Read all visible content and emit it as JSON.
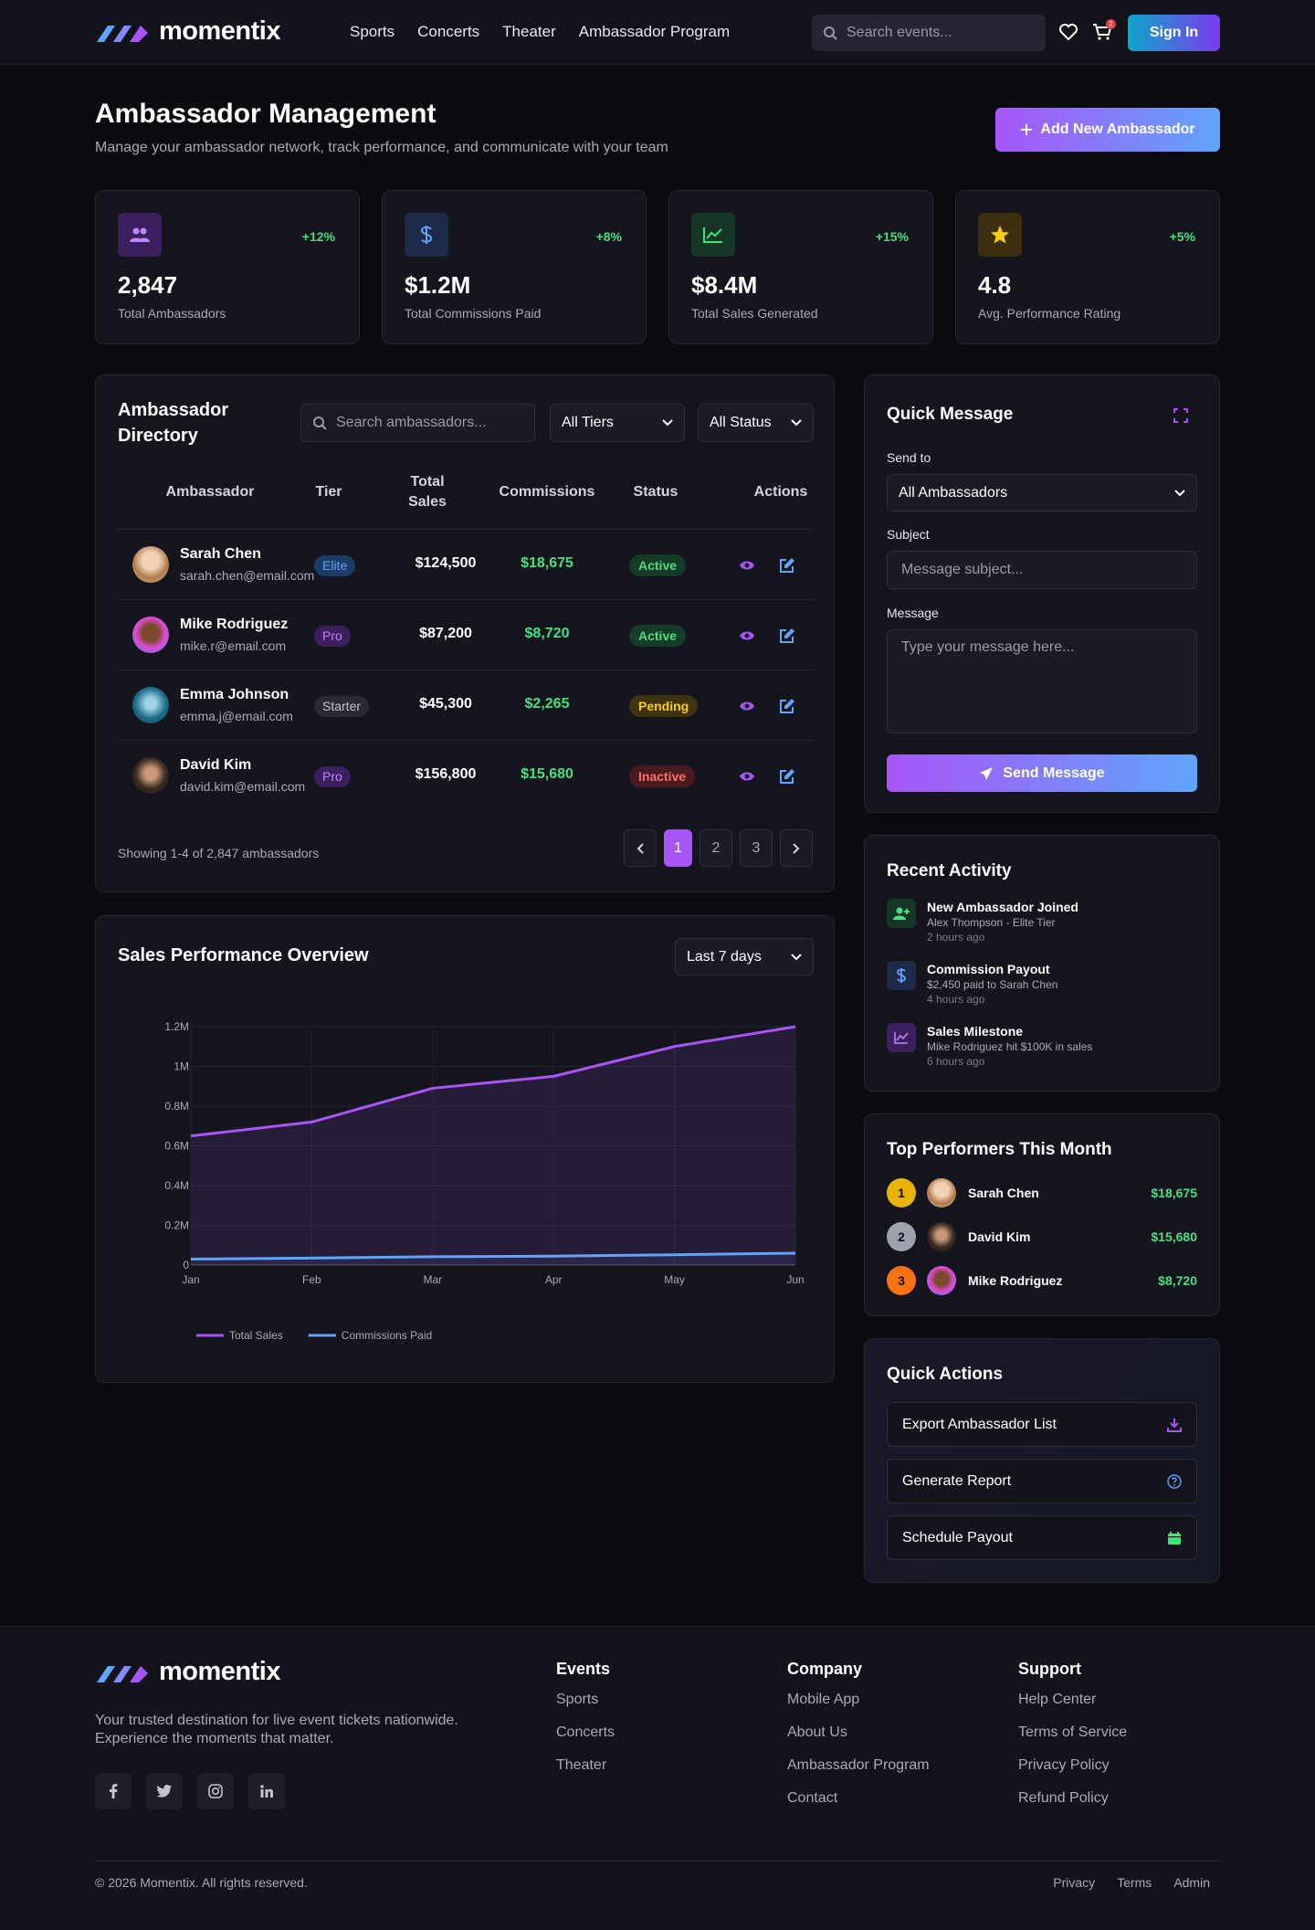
{
  "brand": {
    "name": "momentix"
  },
  "nav": {
    "links": [
      "Sports",
      "Concerts",
      "Theater",
      "Ambassador Program"
    ],
    "search_placeholder": "Search events...",
    "cart_count": "2",
    "signin": "Sign In"
  },
  "header": {
    "title": "Ambassador Management",
    "subtitle": "Manage your ambassador network, track performance, and communicate with your team",
    "add_button": "Add New Ambassador"
  },
  "stats": [
    {
      "value": "2,847",
      "label": "Total Ambassadors",
      "change": "+12%",
      "icon": "users-icon",
      "color": "#a855f7"
    },
    {
      "value": "$1.2M",
      "label": "Total Commissions Paid",
      "change": "+8%",
      "icon": "dollar-icon",
      "color": "#60a5fa"
    },
    {
      "value": "$8.4M",
      "label": "Total Sales Generated",
      "change": "+15%",
      "icon": "trend-icon",
      "color": "#4ade80"
    },
    {
      "value": "4.8",
      "label": "Avg. Performance Rating",
      "change": "+5%",
      "icon": "star-icon",
      "color": "#facc15"
    }
  ],
  "directory": {
    "title": "Ambassador Directory",
    "search_placeholder": "Search ambassadors...",
    "tier_filter": "All Tiers",
    "status_filter": "All Status",
    "columns": {
      "ambassador": "Ambassador",
      "tier": "Tier",
      "sales": "Total Sales",
      "commissions": "Commissions",
      "status": "Status",
      "actions": "Actions"
    },
    "rows": [
      {
        "name": "Sarah Chen",
        "email": "sarah.chen@email.com",
        "tier": "Elite",
        "sales": "$124,500",
        "commissions": "$18,675",
        "status": "Active"
      },
      {
        "name": "Mike Rodriguez",
        "email": "mike.r@email.com",
        "tier": "Pro",
        "sales": "$87,200",
        "commissions": "$8,720",
        "status": "Active"
      },
      {
        "name": "Emma Johnson",
        "email": "emma.j@email.com",
        "tier": "Starter",
        "sales": "$45,300",
        "commissions": "$2,265",
        "status": "Pending"
      },
      {
        "name": "David Kim",
        "email": "david.kim@email.com",
        "tier": "Pro",
        "sales": "$156,800",
        "commissions": "$15,680",
        "status": "Inactive"
      }
    ],
    "showing": "Showing 1-4 of 2,847 ambassadors",
    "pages": [
      "1",
      "2",
      "3"
    ]
  },
  "chart": {
    "title": "Sales Performance Overview",
    "range": "Last 7 days"
  },
  "chart_data": {
    "type": "area",
    "categories": [
      "Jan",
      "Feb",
      "Mar",
      "Apr",
      "May",
      "Jun"
    ],
    "series": [
      {
        "name": "Total Sales",
        "values": [
          650000,
          720000,
          890000,
          950000,
          1100000,
          1200000
        ],
        "color": "#a855f7"
      },
      {
        "name": "Commissions Paid",
        "values": [
          30000,
          35000,
          42000,
          45000,
          52000,
          60000
        ],
        "color": "#60a5fa"
      }
    ],
    "y_ticks": [
      "0",
      "0.2M",
      "0.4M",
      "0.6M",
      "0.8M",
      "1M",
      "1.2M"
    ],
    "ylim": [
      0,
      1200000
    ],
    "legend": "bottom-left",
    "grid": true
  },
  "quick_message": {
    "title": "Quick Message",
    "send_to_label": "Send to",
    "send_to": "All Ambassadors",
    "subject_label": "Subject",
    "subject_placeholder": "Message subject...",
    "message_label": "Message",
    "message_placeholder": "Type your message here...",
    "send": "Send Message"
  },
  "activity": {
    "title": "Recent Activity",
    "items": [
      {
        "title": "New Ambassador Joined",
        "desc": "Alex Thompson - Elite Tier",
        "time": "2 hours ago",
        "color": "#4ade80"
      },
      {
        "title": "Commission Payout",
        "desc": "$2,450 paid to Sarah Chen",
        "time": "4 hours ago",
        "color": "#60a5fa"
      },
      {
        "title": "Sales Milestone",
        "desc": "Mike Rodriguez hit $100K in sales",
        "time": "6 hours ago",
        "color": "#a855f7"
      }
    ]
  },
  "top_performers": {
    "title": "Top Performers This Month",
    "items": [
      {
        "rank": "1",
        "name": "Sarah Chen",
        "amount": "$18,675",
        "color": "#eab308"
      },
      {
        "rank": "2",
        "name": "David Kim",
        "amount": "$15,680",
        "color": "#9ca3af"
      },
      {
        "rank": "3",
        "name": "Mike Rodriguez",
        "amount": "$8,720",
        "color": "#f97316"
      }
    ]
  },
  "quick_actions": {
    "title": "Quick Actions",
    "items": [
      "Export Ambassador List",
      "Generate Report",
      "Schedule Payout"
    ]
  },
  "footer": {
    "tagline": "Your trusted destination for live event tickets nationwide. Experience the moments that matter.",
    "columns": [
      {
        "title": "Events",
        "links": [
          "Sports",
          "Concerts",
          "Theater"
        ]
      },
      {
        "title": "Company",
        "links": [
          "Mobile App",
          "About Us",
          "Ambassador Program",
          "Contact"
        ]
      },
      {
        "title": "Support",
        "links": [
          "Help Center",
          "Terms of Service",
          "Privacy Policy",
          "Refund Policy"
        ]
      }
    ],
    "copyright": "© 2026 Momentix. All rights reserved.",
    "bottom_links": [
      "Privacy",
      "Terms",
      "Admin"
    ]
  }
}
